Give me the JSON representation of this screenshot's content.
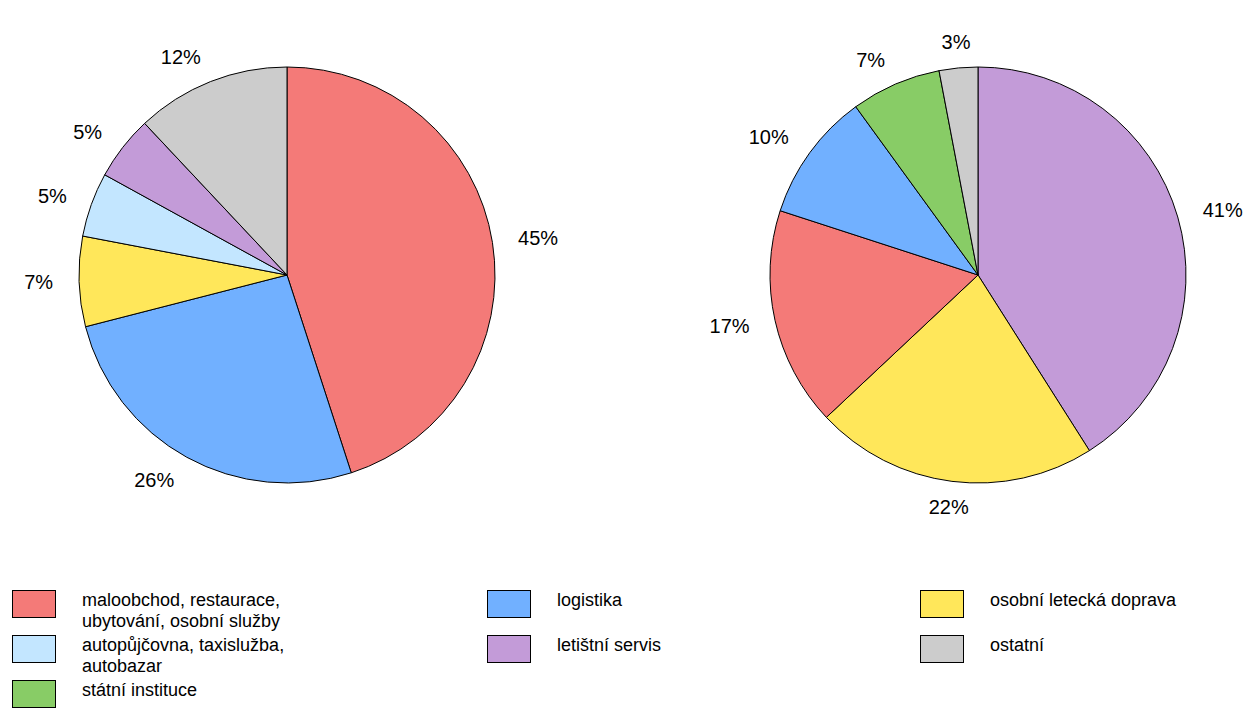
{
  "chart_data": [
    {
      "type": "pie",
      "categories": [
        "maloobchod, restaurace, ubytování, osobní služby",
        "logistika",
        "osobní letecká doprava",
        "autopůjčovna, taxislužba, autobazar",
        "letištní servis",
        "ostatní"
      ],
      "values": [
        45,
        26,
        7,
        5,
        5,
        12
      ],
      "value_labels": [
        "45%",
        "26%",
        "7%",
        "5%",
        "5%",
        "12%"
      ],
      "colors": [
        "#f47a78",
        "#71b0ff",
        "#ffe75a",
        "#c3e6ff",
        "#c39bd8",
        "#cccccc"
      ],
      "data_labels": true
    },
    {
      "type": "pie",
      "categories": [
        "letištní servis",
        "osobní letecká doprava",
        "maloobchod, restaurace, ubytování, osobní služby",
        "logistika",
        "státní instituce",
        "ostatní"
      ],
      "values": [
        41,
        22,
        17,
        10,
        7,
        3
      ],
      "value_labels": [
        "41%",
        "22%",
        "17%",
        "10%",
        "7%",
        "3%"
      ],
      "colors": [
        "#c39bd8",
        "#ffe75a",
        "#f47a78",
        "#71b0ff",
        "#88cc66",
        "#cccccc"
      ],
      "data_labels": true
    }
  ]
}
